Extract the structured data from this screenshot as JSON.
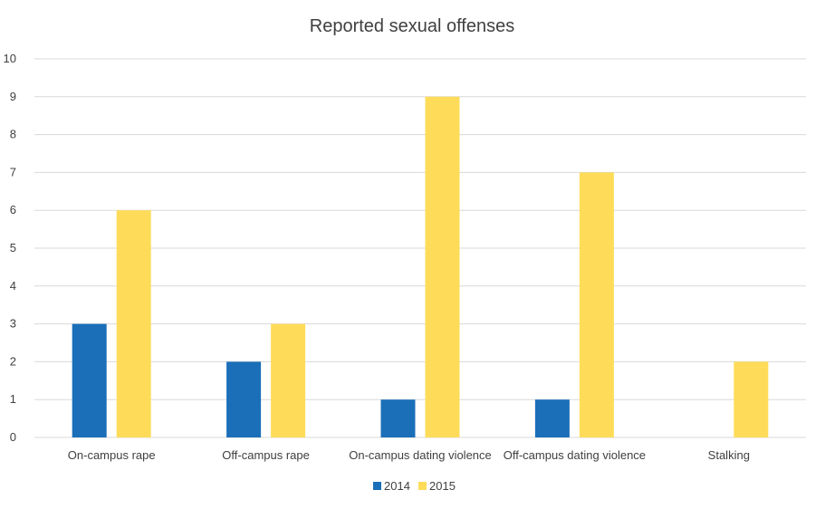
{
  "chart_data": {
    "type": "bar",
    "title": "Reported sexual offenses",
    "xlabel": "",
    "ylabel": "",
    "categories": [
      "On-campus rape",
      "Off-campus rape",
      "On-campus dating violence",
      "Off-campus dating violence",
      "Stalking"
    ],
    "series": [
      {
        "name": "2014",
        "color": "#1b6fb8",
        "values": [
          3,
          2,
          1,
          1,
          0
        ]
      },
      {
        "name": "2015",
        "color": "#fedc5a",
        "values": [
          6,
          3,
          9,
          7,
          2
        ]
      }
    ],
    "ylim": [
      0,
      10
    ],
    "yticks": [
      "0",
      "1",
      "2",
      "3",
      "4",
      "5",
      "6",
      "7",
      "8",
      "9",
      "10"
    ],
    "grid": true,
    "legend_position": "bottom"
  }
}
